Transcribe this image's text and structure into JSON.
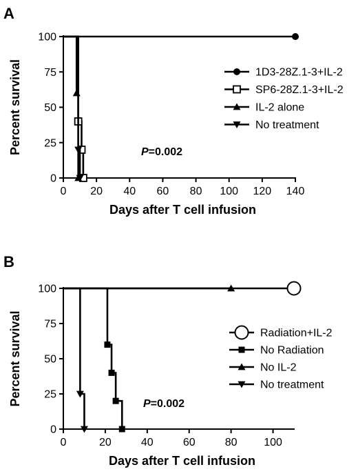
{
  "chart_data": [
    {
      "panel": "A",
      "type": "line",
      "subtype": "kaplan-meier",
      "xlabel": "Days after T cell infusion",
      "ylabel": "Percent survival",
      "xlim": [
        0,
        140
      ],
      "ylim": [
        0,
        100
      ],
      "xticks": [
        0,
        20,
        40,
        60,
        80,
        100,
        120,
        140
      ],
      "yticks": [
        0,
        25,
        50,
        75,
        100
      ],
      "legend_position": "right",
      "annotation": {
        "italic": "P",
        "rest": "=0.002"
      },
      "series": [
        {
          "name": "1D3-28Z.1-3+IL-2",
          "marker": "circle-filled",
          "points": [
            [
              0,
              100
            ],
            [
              140,
              100
            ]
          ],
          "marker_points": [
            [
              140,
              100
            ]
          ]
        },
        {
          "name": "SP6-28Z.1-3+IL-2",
          "marker": "square-open",
          "points": [
            [
              0,
              100
            ],
            [
              9,
              100
            ],
            [
              9,
              40
            ],
            [
              11,
              40
            ],
            [
              11,
              20
            ],
            [
              12,
              20
            ],
            [
              12,
              0
            ]
          ],
          "marker_points": [
            [
              9,
              40
            ],
            [
              11,
              20
            ],
            [
              12,
              0
            ]
          ]
        },
        {
          "name": "IL-2 alone",
          "marker": "triangle-up",
          "points": [
            [
              0,
              100
            ],
            [
              8,
              100
            ],
            [
              8,
              60
            ],
            [
              9,
              60
            ],
            [
              9,
              0
            ]
          ],
          "marker_points": [
            [
              8,
              60
            ],
            [
              9,
              0
            ]
          ]
        },
        {
          "name": "No treatment",
          "marker": "triangle-down",
          "points": [
            [
              0,
              100
            ],
            [
              9,
              100
            ],
            [
              9,
              20
            ],
            [
              10,
              20
            ],
            [
              10,
              0
            ]
          ],
          "marker_points": [
            [
              9,
              20
            ],
            [
              10,
              0
            ]
          ]
        }
      ]
    },
    {
      "panel": "B",
      "type": "line",
      "subtype": "kaplan-meier",
      "xlabel": "Days after T cell infusion",
      "ylabel": "Percent survival",
      "xlim": [
        0,
        110
      ],
      "ylim": [
        0,
        100
      ],
      "xticks": [
        0,
        20,
        40,
        60,
        80,
        100
      ],
      "yticks": [
        0,
        25,
        50,
        75,
        100
      ],
      "legend_position": "right",
      "annotation": {
        "italic": "P",
        "rest": "=0.002"
      },
      "series": [
        {
          "name": "Radiation+IL-2",
          "marker": "circle-open",
          "points": [
            [
              0,
              100
            ],
            [
              110,
              100
            ]
          ],
          "marker_points": [
            [
              110,
              100
            ]
          ]
        },
        {
          "name": "No Radiation",
          "marker": "square-filled",
          "points": [
            [
              0,
              100
            ],
            [
              21,
              100
            ],
            [
              21,
              60
            ],
            [
              23,
              60
            ],
            [
              23,
              40
            ],
            [
              25,
              40
            ],
            [
              25,
              20
            ],
            [
              28,
              20
            ],
            [
              28,
              0
            ]
          ],
          "marker_points": [
            [
              21,
              60
            ],
            [
              23,
              40
            ],
            [
              25,
              20
            ],
            [
              28,
              0
            ]
          ]
        },
        {
          "name": "No IL-2",
          "marker": "triangle-up",
          "points": [
            [
              0,
              100
            ],
            [
              80,
              100
            ]
          ],
          "marker_points": [
            [
              80,
              100
            ]
          ]
        },
        {
          "name": "No treatment",
          "marker": "triangle-down",
          "points": [
            [
              0,
              100
            ],
            [
              8,
              100
            ],
            [
              8,
              25
            ],
            [
              10,
              25
            ],
            [
              10,
              0
            ]
          ],
          "marker_points": [
            [
              8,
              25
            ],
            [
              10,
              0
            ]
          ]
        }
      ]
    }
  ]
}
